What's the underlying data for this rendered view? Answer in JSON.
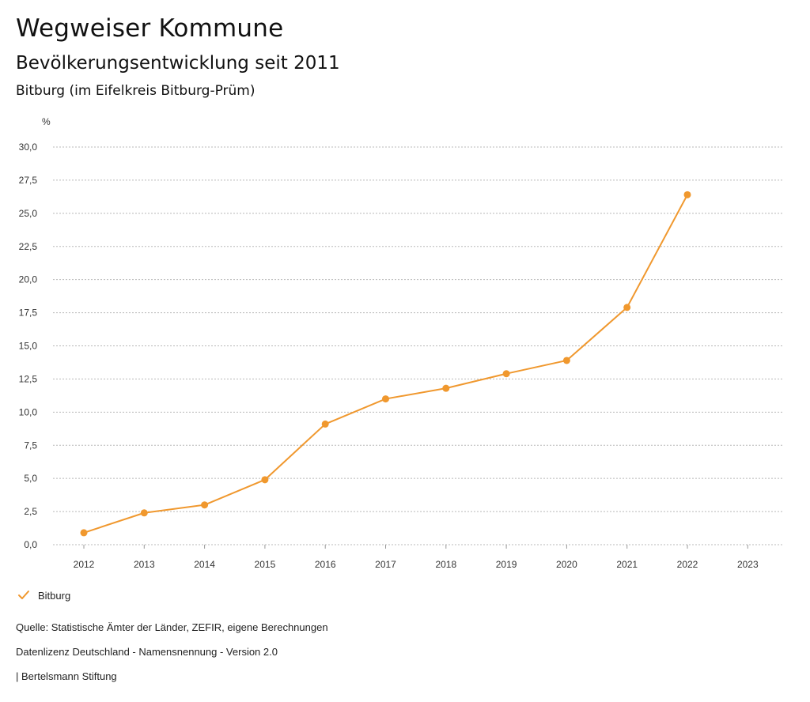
{
  "header": {
    "title": "Wegweiser Kommune",
    "subtitle": "Bevölkerungsentwicklung seit 2011",
    "region": "Bitburg (im Eifelkreis Bitburg-Prüm)"
  },
  "legend": {
    "label": "Bitburg",
    "icon": "checkmark-icon"
  },
  "footer": {
    "source": "Quelle: Statistische Ämter der Länder, ZEFIR, eigene Berechnungen",
    "license": "Datenlizenz Deutschland - Namensnennung - Version 2.0",
    "publisher": "| Bertelsmann Stiftung"
  },
  "colors": {
    "series": "#F0982E",
    "grid": "#b8b8b8",
    "axis": "#999999"
  },
  "chart_data": {
    "type": "line",
    "title": "Bevölkerungsentwicklung seit 2011",
    "subtitle": "Bitburg (im Eifelkreis Bitburg-Prüm)",
    "xlabel": "",
    "ylabel": "%",
    "categories": [
      "2012",
      "2013",
      "2014",
      "2015",
      "2016",
      "2017",
      "2018",
      "2019",
      "2020",
      "2021",
      "2022",
      "2023"
    ],
    "ylim": [
      0,
      30
    ],
    "yticks": [
      0,
      2.5,
      5,
      7.5,
      10,
      12.5,
      15,
      17.5,
      20,
      22.5,
      25,
      27.5,
      30
    ],
    "ytick_labels": [
      "0,0",
      "2,5",
      "5,0",
      "7,5",
      "10,0",
      "12,5",
      "15,0",
      "17,5",
      "20,0",
      "22,5",
      "25,0",
      "27,5",
      "30,0"
    ],
    "grid": true,
    "legend_position": "bottom-left",
    "series": [
      {
        "name": "Bitburg",
        "values": [
          0.9,
          2.4,
          3.0,
          4.9,
          9.1,
          11.0,
          11.8,
          12.9,
          13.9,
          17.9,
          26.4,
          null
        ]
      }
    ]
  }
}
